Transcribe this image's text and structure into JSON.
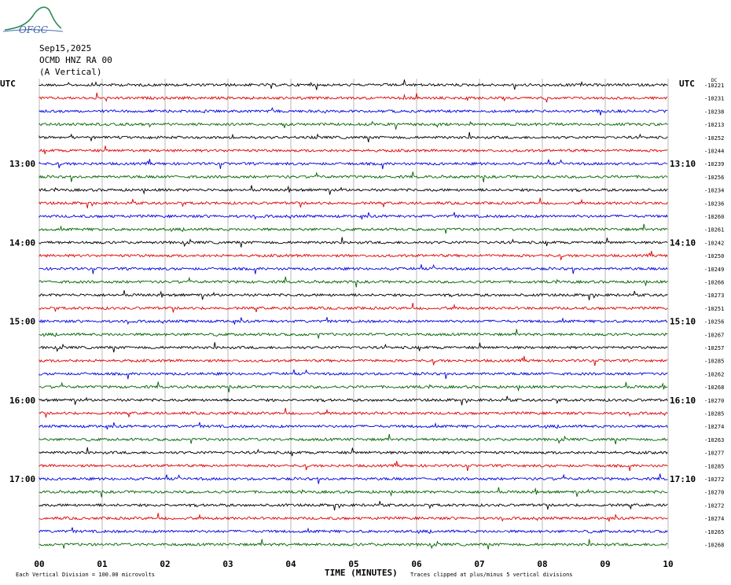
{
  "header": {
    "logo_text": "OFGC",
    "date": "Sep15,2025",
    "station": "OCMD HNZ RA 00",
    "component": "(A Vertical)"
  },
  "axes": {
    "left_tz": "UTC",
    "right_tz": "UTC",
    "xlabel": "TIME (MINUTES)",
    "footer_left": "Each Vertical Division =  100.00 microvolts",
    "footer_right": "Traces clipped at plus/minus 5 vertical divisions",
    "tiny_mark": "DC"
  },
  "chart_data": {
    "type": "line",
    "title": "Sep15,2025 OCMD HNZ RA 00 (A Vertical)",
    "xlabel": "TIME (MINUTES)",
    "xlim": [
      0,
      10
    ],
    "x_ticks": [
      "00",
      "01",
      "02",
      "03",
      "04",
      "05",
      "06",
      "07",
      "08",
      "09",
      "10"
    ],
    "grid": true,
    "left_time_labels": [
      "13:00",
      "14:00",
      "15:00",
      "16:00",
      "17:00"
    ],
    "right_time_labels": [
      "13:10",
      "14:10",
      "15:10",
      "16:10",
      "17:10"
    ],
    "trace_colors": [
      "#000000",
      "#e00000",
      "#0000e0",
      "#006400"
    ],
    "right_values": [
      "-10221",
      "-10231",
      "-10238",
      "-10213",
      "-10252",
      "-10244",
      "-10239",
      "-10256",
      "-10234",
      "-10236",
      "-10260",
      "-10261",
      "-10242",
      "-10250",
      "-10249",
      "-10266",
      "-10273",
      "-10251",
      "-10256",
      "-10267",
      "-10257",
      "-10285",
      "-10262",
      "-10268",
      "-10270",
      "-10285",
      "-10274",
      "-10263",
      "-10277",
      "-10285",
      "-10272",
      "-10270",
      "-10272",
      "-10274",
      "-10265",
      "-10268"
    ]
  }
}
